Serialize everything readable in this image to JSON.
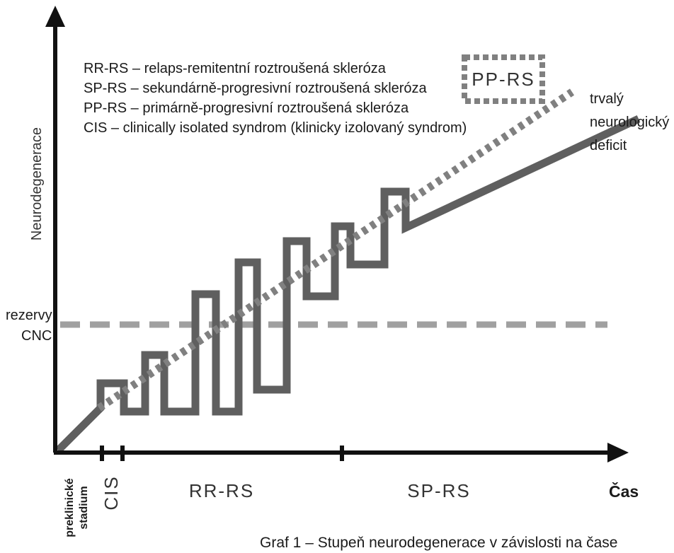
{
  "axes": {
    "y_label": "Neurodegenerace",
    "x_label": "Čas"
  },
  "legend": [
    "RR-RS – relaps-remitentní roztroušená skleróza",
    "SP-RS – sekundárně-progresivní roztroušená skleróza",
    "PP-RS – primárně-progresivní roztroušená skleróza",
    "CIS – clinically isolated syndrom (klinicky izolovaný syndrom)"
  ],
  "pp_box_label": "PP-RS",
  "deficit_label": [
    "trvalý",
    "neurologický",
    "deficit"
  ],
  "reserve_label": [
    "rezervy",
    "CNC"
  ],
  "phases": {
    "preclinical": [
      "preklinické",
      "stadium"
    ],
    "cis": "CIS",
    "rrrs": "RR-RS",
    "sprs": "SP-RS"
  },
  "caption": "Graf 1 – Stupeň neurodegenerace v závislosti na čase",
  "colors": {
    "curve": "#5f5f5f",
    "dotted": "#808080",
    "reserve_line": "#a0a0a0",
    "axis": "#111111"
  }
}
